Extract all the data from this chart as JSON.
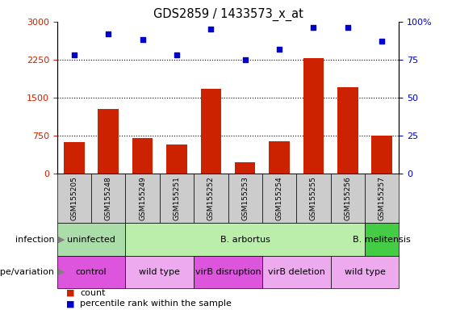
{
  "title": "GDS2859 / 1433573_x_at",
  "samples": [
    "GSM155205",
    "GSM155248",
    "GSM155249",
    "GSM155251",
    "GSM155252",
    "GSM155253",
    "GSM155254",
    "GSM155255",
    "GSM155256",
    "GSM155257"
  ],
  "counts": [
    620,
    1280,
    700,
    580,
    1680,
    220,
    640,
    2280,
    1700,
    750
  ],
  "percentile_ranks": [
    78,
    92,
    88,
    78,
    95,
    75,
    82,
    96,
    96,
    87
  ],
  "ylim_left": [
    0,
    3000
  ],
  "ylim_right": [
    0,
    100
  ],
  "yticks_left": [
    0,
    750,
    1500,
    2250,
    3000
  ],
  "yticks_right": [
    0,
    25,
    50,
    75,
    100
  ],
  "bar_color": "#cc2200",
  "scatter_color": "#0000cc",
  "tick_color_left": "#cc2200",
  "tick_color_right": "#0000cc",
  "infection_groups": [
    {
      "label": "uninfected",
      "start": 0,
      "end": 2,
      "color": "#aaddaa"
    },
    {
      "label": "B. arbortus",
      "start": 2,
      "end": 9,
      "color": "#bbeeaa"
    },
    {
      "label": "B. melitensis",
      "start": 9,
      "end": 10,
      "color": "#44cc44"
    }
  ],
  "genotype_groups": [
    {
      "label": "control",
      "start": 0,
      "end": 2,
      "color": "#dd55dd"
    },
    {
      "label": "wild type",
      "start": 2,
      "end": 4,
      "color": "#eeaaee"
    },
    {
      "label": "virB disruption",
      "start": 4,
      "end": 6,
      "color": "#dd55dd"
    },
    {
      "label": "virB deletion",
      "start": 6,
      "end": 8,
      "color": "#eeaaee"
    },
    {
      "label": "wild type",
      "start": 8,
      "end": 10,
      "color": "#eeaaee"
    }
  ]
}
